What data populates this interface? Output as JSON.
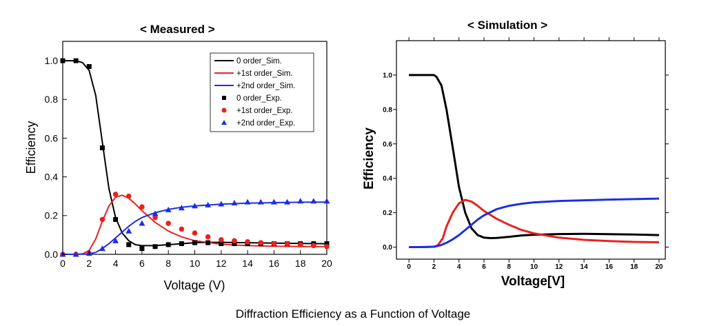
{
  "caption": "Diffraction Efficiency as a Function of Voltage",
  "colors": {
    "zero_order": "#000000",
    "first_order": "#e8221e",
    "second_order": "#1c2ee6"
  },
  "chart_data": [
    {
      "type": "line",
      "title": "< Measured >",
      "xlabel": "Voltage (V)",
      "ylabel": "Efficiency",
      "xlim": [
        0,
        20
      ],
      "ylim": [
        0,
        1.1
      ],
      "xticks": [
        "0",
        "2",
        "4",
        "6",
        "8",
        "10",
        "12",
        "14",
        "16",
        "18",
        "20"
      ],
      "yticks": [
        "0.0",
        "0.2",
        "0.4",
        "0.6",
        "0.8",
        "1.0"
      ],
      "legend": "top-right",
      "grid": false,
      "series": [
        {
          "name": "0 order_Sim.",
          "kind": "line",
          "color": "#000000",
          "x": [
            0,
            1,
            1.5,
            2,
            2.5,
            3,
            3.5,
            4,
            4.5,
            5,
            5.5,
            6,
            7,
            8,
            9,
            10,
            11,
            12,
            14,
            16,
            18,
            20
          ],
          "y": [
            1.0,
            1.0,
            0.99,
            0.95,
            0.82,
            0.58,
            0.34,
            0.19,
            0.11,
            0.07,
            0.05,
            0.045,
            0.045,
            0.05,
            0.055,
            0.06,
            0.062,
            0.062,
            0.06,
            0.058,
            0.056,
            0.055
          ]
        },
        {
          "name": "+1st order_Sim.",
          "kind": "line",
          "color": "#e8221e",
          "x": [
            0,
            1,
            1.5,
            2,
            2.5,
            3,
            3.5,
            4,
            4.5,
            5,
            5.5,
            6,
            7,
            8,
            9,
            10,
            12,
            14,
            16,
            18,
            20
          ],
          "y": [
            0,
            0,
            0.002,
            0.02,
            0.08,
            0.17,
            0.25,
            0.295,
            0.305,
            0.29,
            0.26,
            0.225,
            0.165,
            0.12,
            0.09,
            0.07,
            0.052,
            0.045,
            0.042,
            0.04,
            0.04
          ]
        },
        {
          "name": "+2nd order_Sim.",
          "kind": "line",
          "color": "#1c2ee6",
          "x": [
            0,
            1,
            2,
            2.5,
            3,
            3.5,
            4,
            4.5,
            5,
            5.5,
            6,
            7,
            8,
            9,
            10,
            12,
            14,
            16,
            18,
            20
          ],
          "y": [
            0,
            0,
            0.002,
            0.01,
            0.03,
            0.055,
            0.085,
            0.115,
            0.145,
            0.17,
            0.19,
            0.215,
            0.232,
            0.243,
            0.25,
            0.259,
            0.264,
            0.267,
            0.269,
            0.27
          ]
        },
        {
          "name": "0 order_Exp.",
          "kind": "points",
          "marker": "square",
          "color": "#000000",
          "x": [
            0,
            1,
            2,
            3,
            4,
            5,
            6,
            7,
            8,
            9,
            10,
            11,
            12,
            13,
            14,
            15,
            16,
            17,
            18,
            19,
            20
          ],
          "y": [
            1.0,
            1.0,
            0.97,
            0.55,
            0.18,
            0.05,
            0.03,
            0.04,
            0.05,
            0.055,
            0.06,
            0.06,
            0.055,
            0.055,
            0.055,
            0.055,
            0.055,
            0.055,
            0.055,
            0.055,
            0.055
          ]
        },
        {
          "name": "+1st order_Exp.",
          "kind": "points",
          "marker": "circle",
          "color": "#e8221e",
          "x": [
            0,
            1,
            2,
            3,
            4,
            5,
            6,
            7,
            8,
            9,
            10,
            11,
            12,
            13,
            14,
            15,
            16,
            17,
            18,
            19,
            20
          ],
          "y": [
            0,
            0,
            0.005,
            0.18,
            0.31,
            0.3,
            0.245,
            0.19,
            0.16,
            0.13,
            0.11,
            0.09,
            0.075,
            0.07,
            0.065,
            0.06,
            0.055,
            0.055,
            0.05,
            0.045,
            0.04
          ]
        },
        {
          "name": "+2nd order_Exp.",
          "kind": "points",
          "marker": "triangle",
          "color": "#1c2ee6",
          "x": [
            0,
            1,
            2,
            3,
            4,
            5,
            6,
            7,
            8,
            9,
            10,
            11,
            12,
            13,
            14,
            15,
            16,
            17,
            18,
            19,
            20
          ],
          "y": [
            0,
            0,
            0.005,
            0.03,
            0.07,
            0.12,
            0.16,
            0.21,
            0.23,
            0.24,
            0.25,
            0.255,
            0.26,
            0.265,
            0.27,
            0.27,
            0.27,
            0.27,
            0.275,
            0.275,
            0.275
          ]
        }
      ]
    },
    {
      "type": "line",
      "title": "< Simulation >",
      "xlabel": "Voltage[V]",
      "ylabel": "Efficiency",
      "xlim": [
        -1,
        20.5
      ],
      "ylim": [
        -0.07,
        1.2
      ],
      "xticks": [
        "0",
        "2",
        "4",
        "6",
        "8",
        "10",
        "12",
        "14",
        "16",
        "18",
        "20"
      ],
      "yticks": [
        "0.0",
        "0.2",
        "0.4",
        "0.6",
        "0.8",
        "1.0"
      ],
      "legend": "none",
      "grid": false,
      "series": [
        {
          "color": "#000000",
          "x": [
            0,
            1,
            2,
            2.2,
            2.6,
            3,
            3.5,
            4,
            4.5,
            5,
            5.5,
            6,
            6.5,
            7,
            8,
            9,
            10,
            12,
            14,
            16,
            18,
            20
          ],
          "y": [
            1.0,
            1.0,
            1.0,
            0.99,
            0.94,
            0.8,
            0.58,
            0.35,
            0.2,
            0.11,
            0.07,
            0.055,
            0.052,
            0.053,
            0.06,
            0.068,
            0.072,
            0.076,
            0.077,
            0.075,
            0.073,
            0.07
          ]
        },
        {
          "color": "#e8221e",
          "x": [
            0,
            1,
            2,
            2.3,
            2.7,
            3,
            3.5,
            4,
            4.5,
            5,
            5.5,
            6,
            7,
            8,
            9,
            10,
            12,
            14,
            16,
            18,
            20
          ],
          "y": [
            0,
            0,
            0.002,
            0.01,
            0.05,
            0.12,
            0.2,
            0.255,
            0.275,
            0.265,
            0.24,
            0.21,
            0.165,
            0.13,
            0.1,
            0.08,
            0.055,
            0.042,
            0.035,
            0.03,
            0.028
          ]
        },
        {
          "color": "#1c2ee6",
          "x": [
            0,
            1,
            2,
            2.5,
            3,
            3.5,
            4,
            4.5,
            5,
            5.5,
            6,
            7,
            8,
            9,
            10,
            12,
            14,
            16,
            18,
            20
          ],
          "y": [
            0,
            0,
            0.002,
            0.01,
            0.025,
            0.045,
            0.07,
            0.1,
            0.13,
            0.16,
            0.185,
            0.22,
            0.24,
            0.252,
            0.26,
            0.268,
            0.272,
            0.276,
            0.279,
            0.282
          ]
        }
      ]
    }
  ]
}
